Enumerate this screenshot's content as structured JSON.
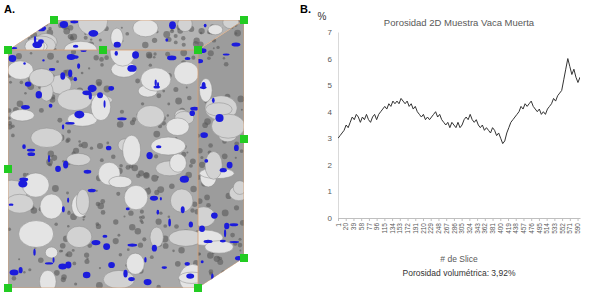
{
  "panels": {
    "a": "A.",
    "b": "B."
  },
  "chart_data": {
    "type": "line",
    "title": "Porosidad 2D Muestra Vaca Muerta",
    "y_label": "%",
    "x_label": "# de Slice",
    "annotation": "Porosidad volumétrica: 3,92%",
    "color": "#333333",
    "grid": false,
    "xlim": [
      1,
      596
    ],
    "xticks": [
      1,
      20,
      39,
      58,
      77,
      96,
      115,
      134,
      153,
      172,
      191,
      210,
      229,
      248,
      267,
      286,
      305,
      324,
      343,
      362,
      381,
      400,
      419,
      438,
      457,
      476,
      495,
      514,
      533,
      552,
      571,
      590
    ],
    "ylim": [
      0,
      7
    ],
    "yticks": [
      0,
      1,
      2,
      3,
      4,
      5,
      6,
      7
    ],
    "x": [
      1,
      6,
      11,
      16,
      21,
      26,
      31,
      36,
      41,
      46,
      51,
      56,
      61,
      66,
      71,
      76,
      81,
      86,
      91,
      96,
      101,
      106,
      111,
      116,
      121,
      126,
      131,
      136,
      141,
      146,
      151,
      156,
      161,
      166,
      171,
      176,
      181,
      186,
      191,
      196,
      201,
      206,
      211,
      216,
      221,
      226,
      231,
      236,
      241,
      246,
      251,
      256,
      261,
      266,
      271,
      276,
      281,
      286,
      291,
      296,
      301,
      306,
      311,
      316,
      321,
      326,
      331,
      336,
      341,
      346,
      351,
      356,
      361,
      366,
      371,
      376,
      381,
      386,
      391,
      396,
      401,
      406,
      411,
      416,
      421,
      426,
      431,
      436,
      441,
      446,
      451,
      456,
      461,
      466,
      471,
      476,
      481,
      486,
      491,
      496,
      501,
      506,
      511,
      516,
      521,
      526,
      531,
      536,
      541,
      546,
      551,
      556,
      561,
      566,
      571,
      576,
      581,
      586,
      591,
      596
    ],
    "values": [
      3.0,
      3.1,
      3.2,
      3.3,
      3.5,
      3.4,
      3.6,
      3.8,
      3.7,
      3.9,
      3.8,
      3.6,
      3.8,
      3.7,
      3.9,
      3.7,
      3.6,
      3.8,
      3.9,
      3.7,
      3.9,
      4.0,
      4.1,
      4.2,
      4.1,
      4.3,
      4.2,
      4.4,
      4.3,
      4.4,
      4.3,
      4.5,
      4.4,
      4.3,
      4.4,
      4.2,
      4.3,
      4.1,
      4.2,
      4.0,
      3.9,
      3.8,
      3.9,
      3.7,
      3.8,
      3.7,
      3.8,
      3.9,
      4.0,
      3.8,
      3.9,
      3.7,
      3.6,
      3.5,
      3.6,
      3.4,
      3.6,
      3.5,
      3.4,
      3.6,
      3.4,
      3.5,
      3.7,
      3.8,
      3.7,
      3.9,
      3.7,
      3.6,
      3.7,
      3.5,
      3.4,
      3.5,
      3.3,
      3.4,
      3.3,
      3.2,
      3.4,
      3.3,
      3.1,
      3.2,
      3.0,
      2.8,
      2.9,
      3.2,
      3.4,
      3.6,
      3.7,
      3.8,
      3.9,
      4.0,
      4.2,
      4.1,
      4.3,
      4.2,
      4.3,
      4.4,
      4.2,
      4.1,
      4.0,
      4.1,
      3.9,
      4.0,
      3.9,
      4.1,
      4.2,
      4.3,
      4.5,
      4.4,
      4.6,
      4.7,
      4.8,
      5.2,
      5.6,
      6.0,
      5.7,
      5.4,
      5.6,
      5.3,
      5.1,
      5.3
    ]
  }
}
